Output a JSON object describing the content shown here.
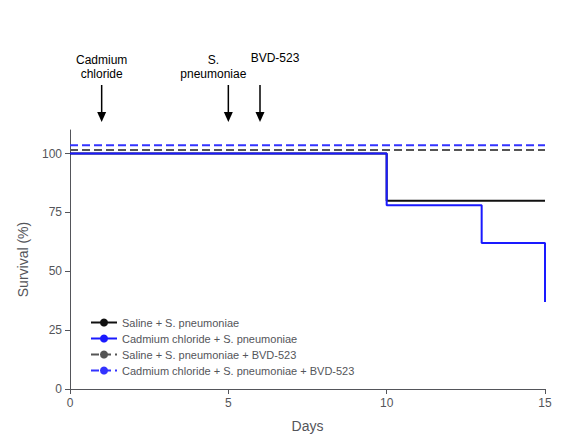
{
  "chart_data": {
    "type": "line",
    "xlabel": "Days",
    "ylabel": "Survival (%)",
    "xlim": [
      0,
      15
    ],
    "ylim": [
      0,
      110
    ],
    "xticks": [
      0,
      5,
      10,
      15
    ],
    "yticks": [
      0,
      25,
      50,
      75,
      100
    ],
    "grid": false,
    "legend": "lower left",
    "series": [
      {
        "name": "Saline + S. pneumoniae",
        "color": "#111111",
        "line_style": "solid",
        "x": [
          0,
          10,
          10,
          15
        ],
        "values": [
          100,
          100,
          80,
          80
        ]
      },
      {
        "name": "Cadmium chloride + S. pneumoniae",
        "color": "#1a1aff",
        "line_style": "solid",
        "x": [
          0,
          10,
          10,
          13,
          13,
          15,
          15
        ],
        "values": [
          100,
          100,
          78,
          78,
          62,
          62,
          37
        ]
      },
      {
        "name": "Saline + S. pneumoniae + BVD-523",
        "color": "#555555",
        "line_style": "dashed",
        "x": [
          0,
          15
        ],
        "values": [
          101.5,
          101.5
        ]
      },
      {
        "name": "Cadmium chloride + S. pneumoniae + BVD-523",
        "color": "#3333ff",
        "line_style": "dashed",
        "x": [
          0,
          15
        ],
        "values": [
          103.5,
          103.5
        ]
      }
    ],
    "annotations": [
      {
        "text": "Cadmium\nchloride",
        "x": 1
      },
      {
        "text": "S.\npneumoniae",
        "x": 5
      },
      {
        "text": "BVD-523",
        "x": 6
      }
    ]
  }
}
